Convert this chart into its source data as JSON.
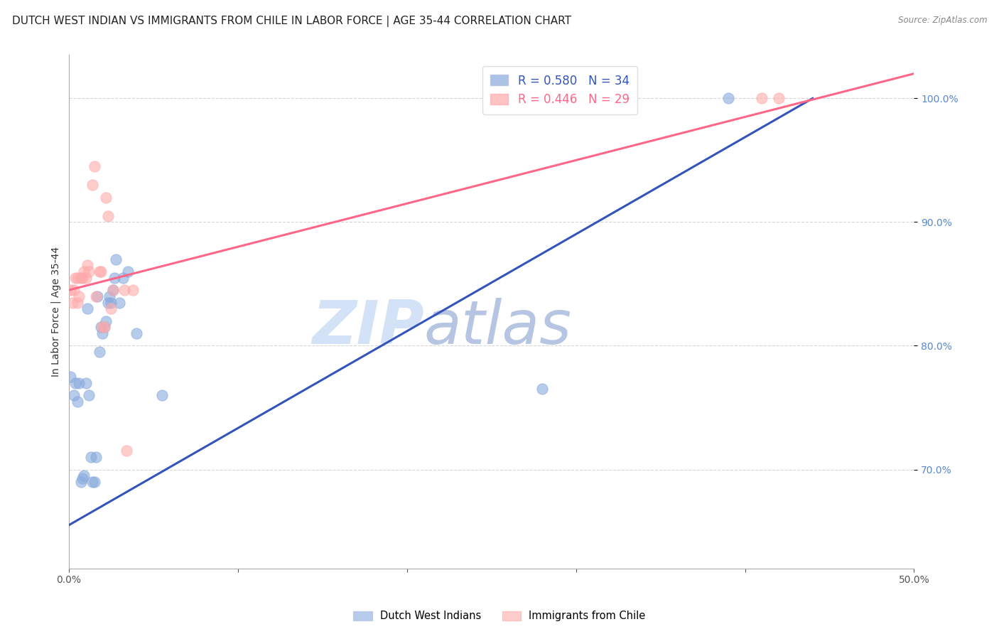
{
  "title": "DUTCH WEST INDIAN VS IMMIGRANTS FROM CHILE IN LABOR FORCE | AGE 35-44 CORRELATION CHART",
  "source": "Source: ZipAtlas.com",
  "ylabel": "In Labor Force | Age 35-44",
  "xlim": [
    0.0,
    0.5
  ],
  "ylim": [
    0.62,
    1.035
  ],
  "blue_color": "#88AADD",
  "pink_color": "#FFAAAA",
  "blue_line_color": "#3355BB",
  "pink_line_color": "#FF6688",
  "blue_r": 0.58,
  "blue_n": 34,
  "pink_r": 0.446,
  "pink_n": 29,
  "watermark_zip": "ZIP",
  "watermark_atlas": "atlas",
  "blue_scatter_x": [
    0.001,
    0.003,
    0.004,
    0.005,
    0.006,
    0.007,
    0.008,
    0.009,
    0.01,
    0.011,
    0.012,
    0.013,
    0.014,
    0.015,
    0.016,
    0.017,
    0.018,
    0.019,
    0.02,
    0.021,
    0.022,
    0.023,
    0.024,
    0.025,
    0.026,
    0.027,
    0.028,
    0.03,
    0.032,
    0.035,
    0.04,
    0.055,
    0.28,
    0.39
  ],
  "blue_scatter_y": [
    0.775,
    0.76,
    0.77,
    0.755,
    0.77,
    0.69,
    0.693,
    0.695,
    0.77,
    0.83,
    0.76,
    0.71,
    0.69,
    0.69,
    0.71,
    0.84,
    0.795,
    0.815,
    0.81,
    0.815,
    0.82,
    0.835,
    0.84,
    0.835,
    0.845,
    0.855,
    0.87,
    0.835,
    0.855,
    0.86,
    0.81,
    0.76,
    0.765,
    1.0
  ],
  "pink_scatter_x": [
    0.001,
    0.002,
    0.003,
    0.004,
    0.005,
    0.005,
    0.006,
    0.007,
    0.008,
    0.009,
    0.01,
    0.011,
    0.012,
    0.014,
    0.015,
    0.016,
    0.018,
    0.019,
    0.02,
    0.021,
    0.022,
    0.023,
    0.025,
    0.026,
    0.033,
    0.034,
    0.038,
    0.41,
    0.42
  ],
  "pink_scatter_y": [
    0.845,
    0.835,
    0.845,
    0.855,
    0.835,
    0.855,
    0.84,
    0.855,
    0.855,
    0.86,
    0.855,
    0.865,
    0.86,
    0.93,
    0.945,
    0.84,
    0.86,
    0.86,
    0.815,
    0.815,
    0.92,
    0.905,
    0.83,
    0.845,
    0.845,
    0.715,
    0.845,
    1.0,
    1.0
  ],
  "blue_line_x0": 0.0,
  "blue_line_x1": 0.44,
  "blue_line_y0": 0.655,
  "blue_line_y1": 1.0,
  "pink_line_x0": 0.0,
  "pink_line_x1": 0.5,
  "pink_line_y0": 0.845,
  "pink_line_y1": 1.02,
  "title_fontsize": 11,
  "axis_label_fontsize": 10,
  "tick_fontsize": 10,
  "legend_fontsize": 12,
  "background_color": "#ffffff",
  "grid_color": "#cccccc",
  "ytick_labels_show": [
    0.7,
    0.8,
    0.9,
    1.0
  ],
  "ytick_labels_hide": [
    0.5,
    0.6
  ]
}
